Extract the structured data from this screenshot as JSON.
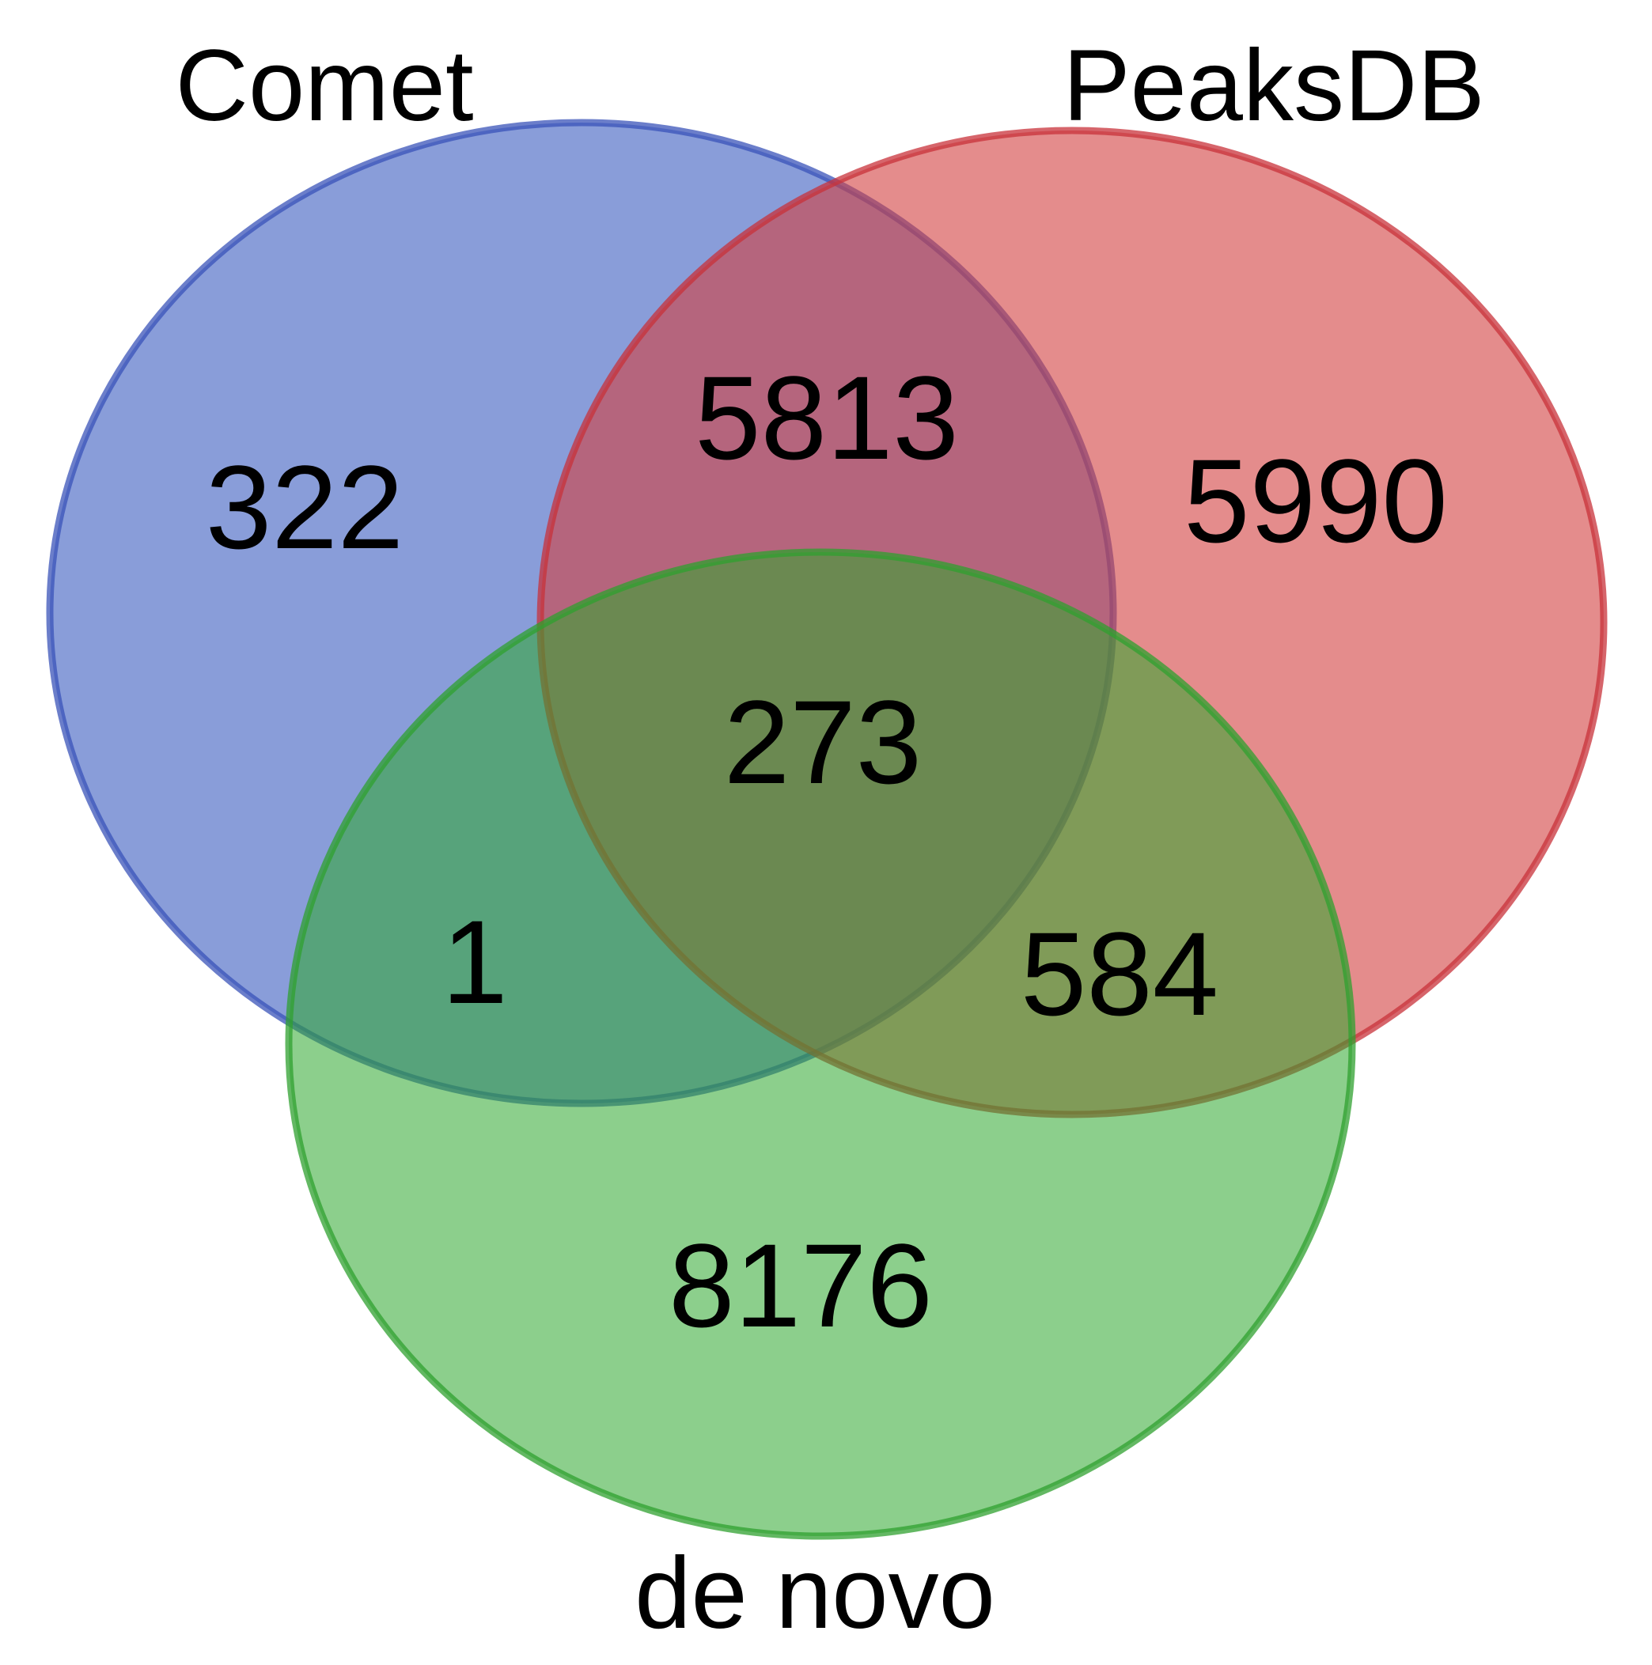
{
  "sets": [
    {
      "id": "comet",
      "label": "Comet",
      "fill": "#3a5bbf",
      "stroke": "#3a53b8"
    },
    {
      "id": "peaksdb",
      "label": "PeaksDB",
      "fill": "#d23f3f",
      "stroke": "#c8323a"
    },
    {
      "id": "denovo",
      "label": "de novo",
      "fill": "#2ea82e",
      "stroke": "#2fa02f"
    }
  ],
  "regions": {
    "comet_only": "322",
    "peaksdb_only": "5990",
    "denovo_only": "8176",
    "comet_peaksdb": "5813",
    "comet_denovo": "1",
    "peaksdb_denovo": "584",
    "all_three": "273"
  }
}
